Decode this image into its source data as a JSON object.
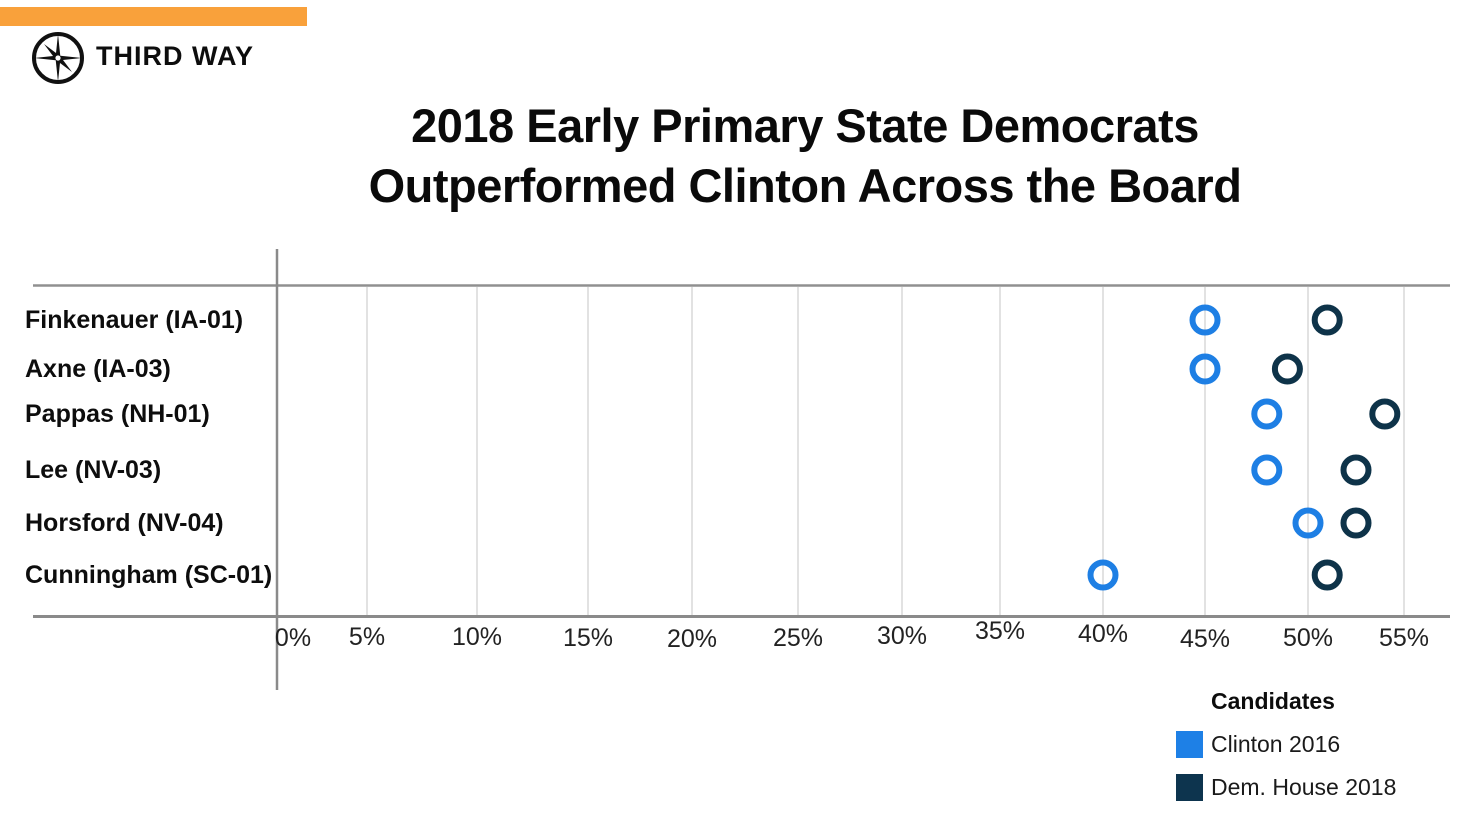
{
  "brand": {
    "logo_text": "THIRD WAY",
    "logo_icon": "compass-star-icon",
    "accent_bar_color": "#F9A13B"
  },
  "title": {
    "line1": "2018 Early Primary State Democrats",
    "line2": "Outperformed Clinton Across the Board"
  },
  "legend": {
    "title": "Candidates",
    "items": [
      {
        "label": "Clinton 2016",
        "color": "#1E80E6"
      },
      {
        "label": "Dem. House 2018",
        "color": "#0D344E"
      }
    ]
  },
  "chart_data": {
    "type": "scatter",
    "subtype": "dot-plot",
    "categories": [
      "Finkenauer (IA-01)",
      "Axne (IA-03)",
      "Pappas (NH-01)",
      "Lee (NV-03)",
      "Horsford (NV-04)",
      "Cunningham (SC-01)"
    ],
    "series": [
      {
        "name": "Clinton 2016",
        "color": "#1E7FE4",
        "values": [
          45,
          45,
          48,
          48,
          50,
          40
        ]
      },
      {
        "name": "Dem. House 2018",
        "color": "#0E3349",
        "values": [
          51,
          49,
          54,
          52.5,
          52.5,
          51
        ]
      }
    ],
    "x_axis": {
      "unit": "%",
      "min": 0,
      "max": 55,
      "tick_step": 5,
      "tick_labels": [
        "0%",
        "5%",
        "10%",
        "15%",
        "20%",
        "25%",
        "30%",
        "35%",
        "40%",
        "45%",
        "50%",
        "55%"
      ]
    },
    "grid": "vertical",
    "legend_position": "bottom-right",
    "marker": "open-circle"
  },
  "colors": {
    "accent_orange": "#F9A13B",
    "clinton_blue": "#1E7FE4",
    "dem_navy": "#0E3349",
    "axis_gray": "#8a8a8a",
    "grid_gray": "#e2e2e2"
  }
}
